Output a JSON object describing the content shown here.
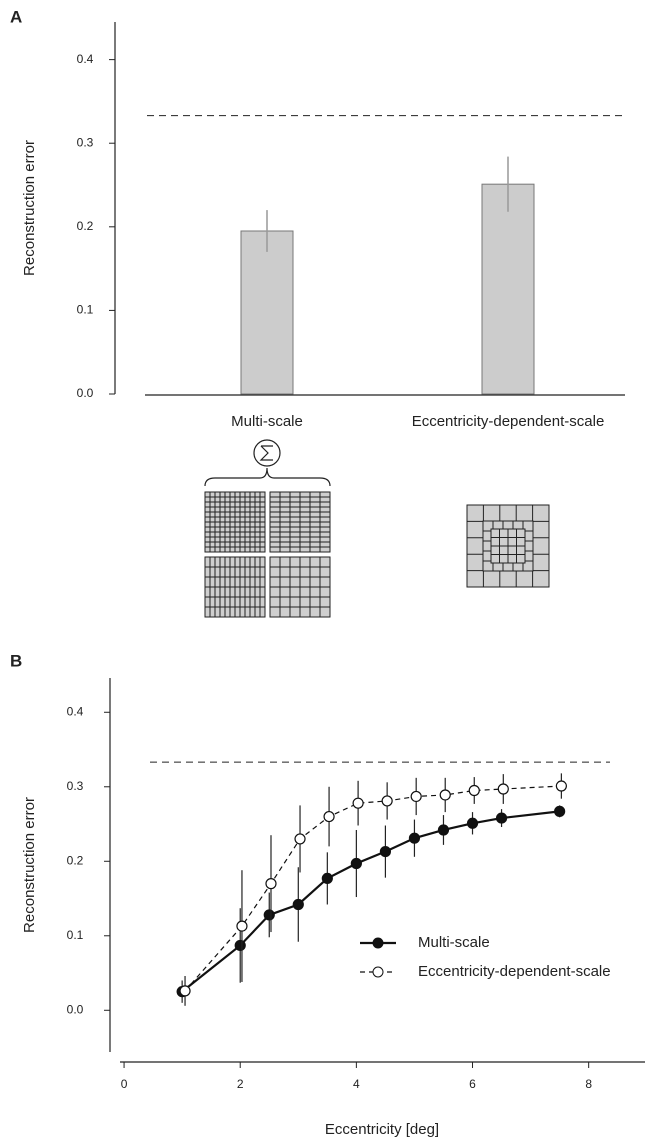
{
  "chart_data": [
    {
      "type": "bar",
      "panel_label": "A",
      "ylabel": "Reconstruction error",
      "categories": [
        "Multi-scale",
        "Eccentricity-dependent-scale"
      ],
      "values": [
        0.195,
        0.251
      ],
      "errors": [
        0.025,
        0.033
      ],
      "color": "#cccccc",
      "reference_line": 0.333,
      "ylim": [
        0,
        0.445
      ],
      "yticks": [
        {
          "value": 0,
          "label": "0.0"
        },
        0.1,
        0.2,
        0.3,
        0.4
      ]
    },
    {
      "type": "line",
      "panel_label": "B",
      "ylabel": "Reconstruction error",
      "xlabel": "Eccentricity [deg]",
      "reference_line": 0.333,
      "legend": "lower right",
      "series": [
        {
          "name": "Multi-scale",
          "color": "#111111",
          "marker": "filled",
          "dash": false,
          "x": [
            1,
            2,
            2.5,
            3,
            3.5,
            4,
            4.5,
            5,
            5.5,
            6,
            6.5,
            7.5
          ],
          "values": [
            0.025,
            0.087,
            0.128,
            0.142,
            0.177,
            0.197,
            0.213,
            0.231,
            0.242,
            0.251,
            0.258,
            0.267
          ],
          "errors": [
            0.015,
            0.05,
            0.03,
            0.05,
            0.035,
            0.045,
            0.035,
            0.025,
            0.02,
            0.015,
            0.012,
            0.008
          ]
        },
        {
          "name": "Eccentricity-dependent-scale",
          "color": "#111111",
          "marker": "open",
          "dash": true,
          "x": [
            1.05,
            2.03,
            2.53,
            3.03,
            3.53,
            4.03,
            4.53,
            5.03,
            5.53,
            6.03,
            6.53,
            7.53
          ],
          "values": [
            0.026,
            0.113,
            0.17,
            0.23,
            0.26,
            0.278,
            0.281,
            0.287,
            0.289,
            0.295,
            0.297,
            0.301
          ],
          "errors": [
            0.02,
            0.075,
            0.065,
            0.045,
            0.04,
            0.03,
            0.025,
            0.025,
            0.023,
            0.018,
            0.02,
            0.017
          ]
        }
      ],
      "xlim": [
        -0.07,
        8.97
      ],
      "xticks": [
        0,
        2,
        4,
        6,
        8
      ],
      "ylim": [
        -0.056,
        0.446
      ],
      "yticks": [
        {
          "value": 0,
          "label": "0.0"
        },
        0.1,
        0.2,
        0.3,
        0.4
      ]
    }
  ]
}
